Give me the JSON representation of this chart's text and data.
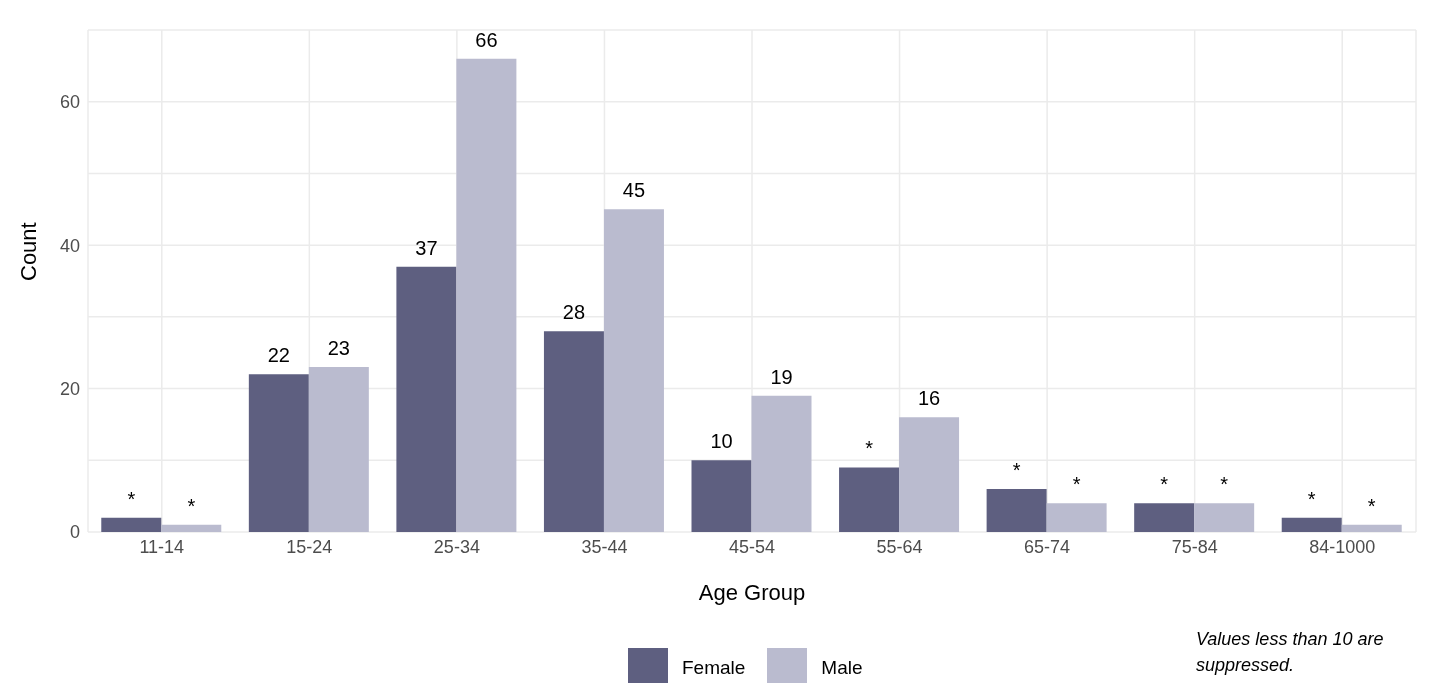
{
  "chart_data": {
    "type": "bar",
    "xlabel": "Age Group",
    "ylabel": "Count",
    "categories": [
      "11-14",
      "15-24",
      "25-34",
      "35-44",
      "45-54",
      "55-64",
      "65-74",
      "75-84",
      "84-1000"
    ],
    "series": [
      {
        "name": "Female",
        "color": "#5e5f80",
        "values": [
          2,
          22,
          37,
          28,
          10,
          9,
          6,
          4,
          2
        ],
        "value_labels": [
          "*",
          "22",
          "37",
          "28",
          "10",
          "*",
          "*",
          "*",
          "*"
        ]
      },
      {
        "name": "Male",
        "color": "#babbcf",
        "values": [
          1,
          23,
          66,
          45,
          19,
          16,
          4,
          4,
          1
        ],
        "value_labels": [
          "*",
          "23",
          "66",
          "45",
          "19",
          "16",
          "*",
          "*",
          "*"
        ]
      }
    ],
    "ylim": [
      0,
      70
    ],
    "yticks": [
      0,
      {
        "value": 10,
        "label": null
      },
      20,
      {
        "value": 30,
        "label": null
      },
      40,
      {
        "value": 50,
        "label": null
      },
      60,
      {
        "value": 70,
        "label": null
      }
    ],
    "grid": true,
    "legend": "bottom",
    "annotations": [
      "Values less than 10 are suppressed."
    ]
  }
}
